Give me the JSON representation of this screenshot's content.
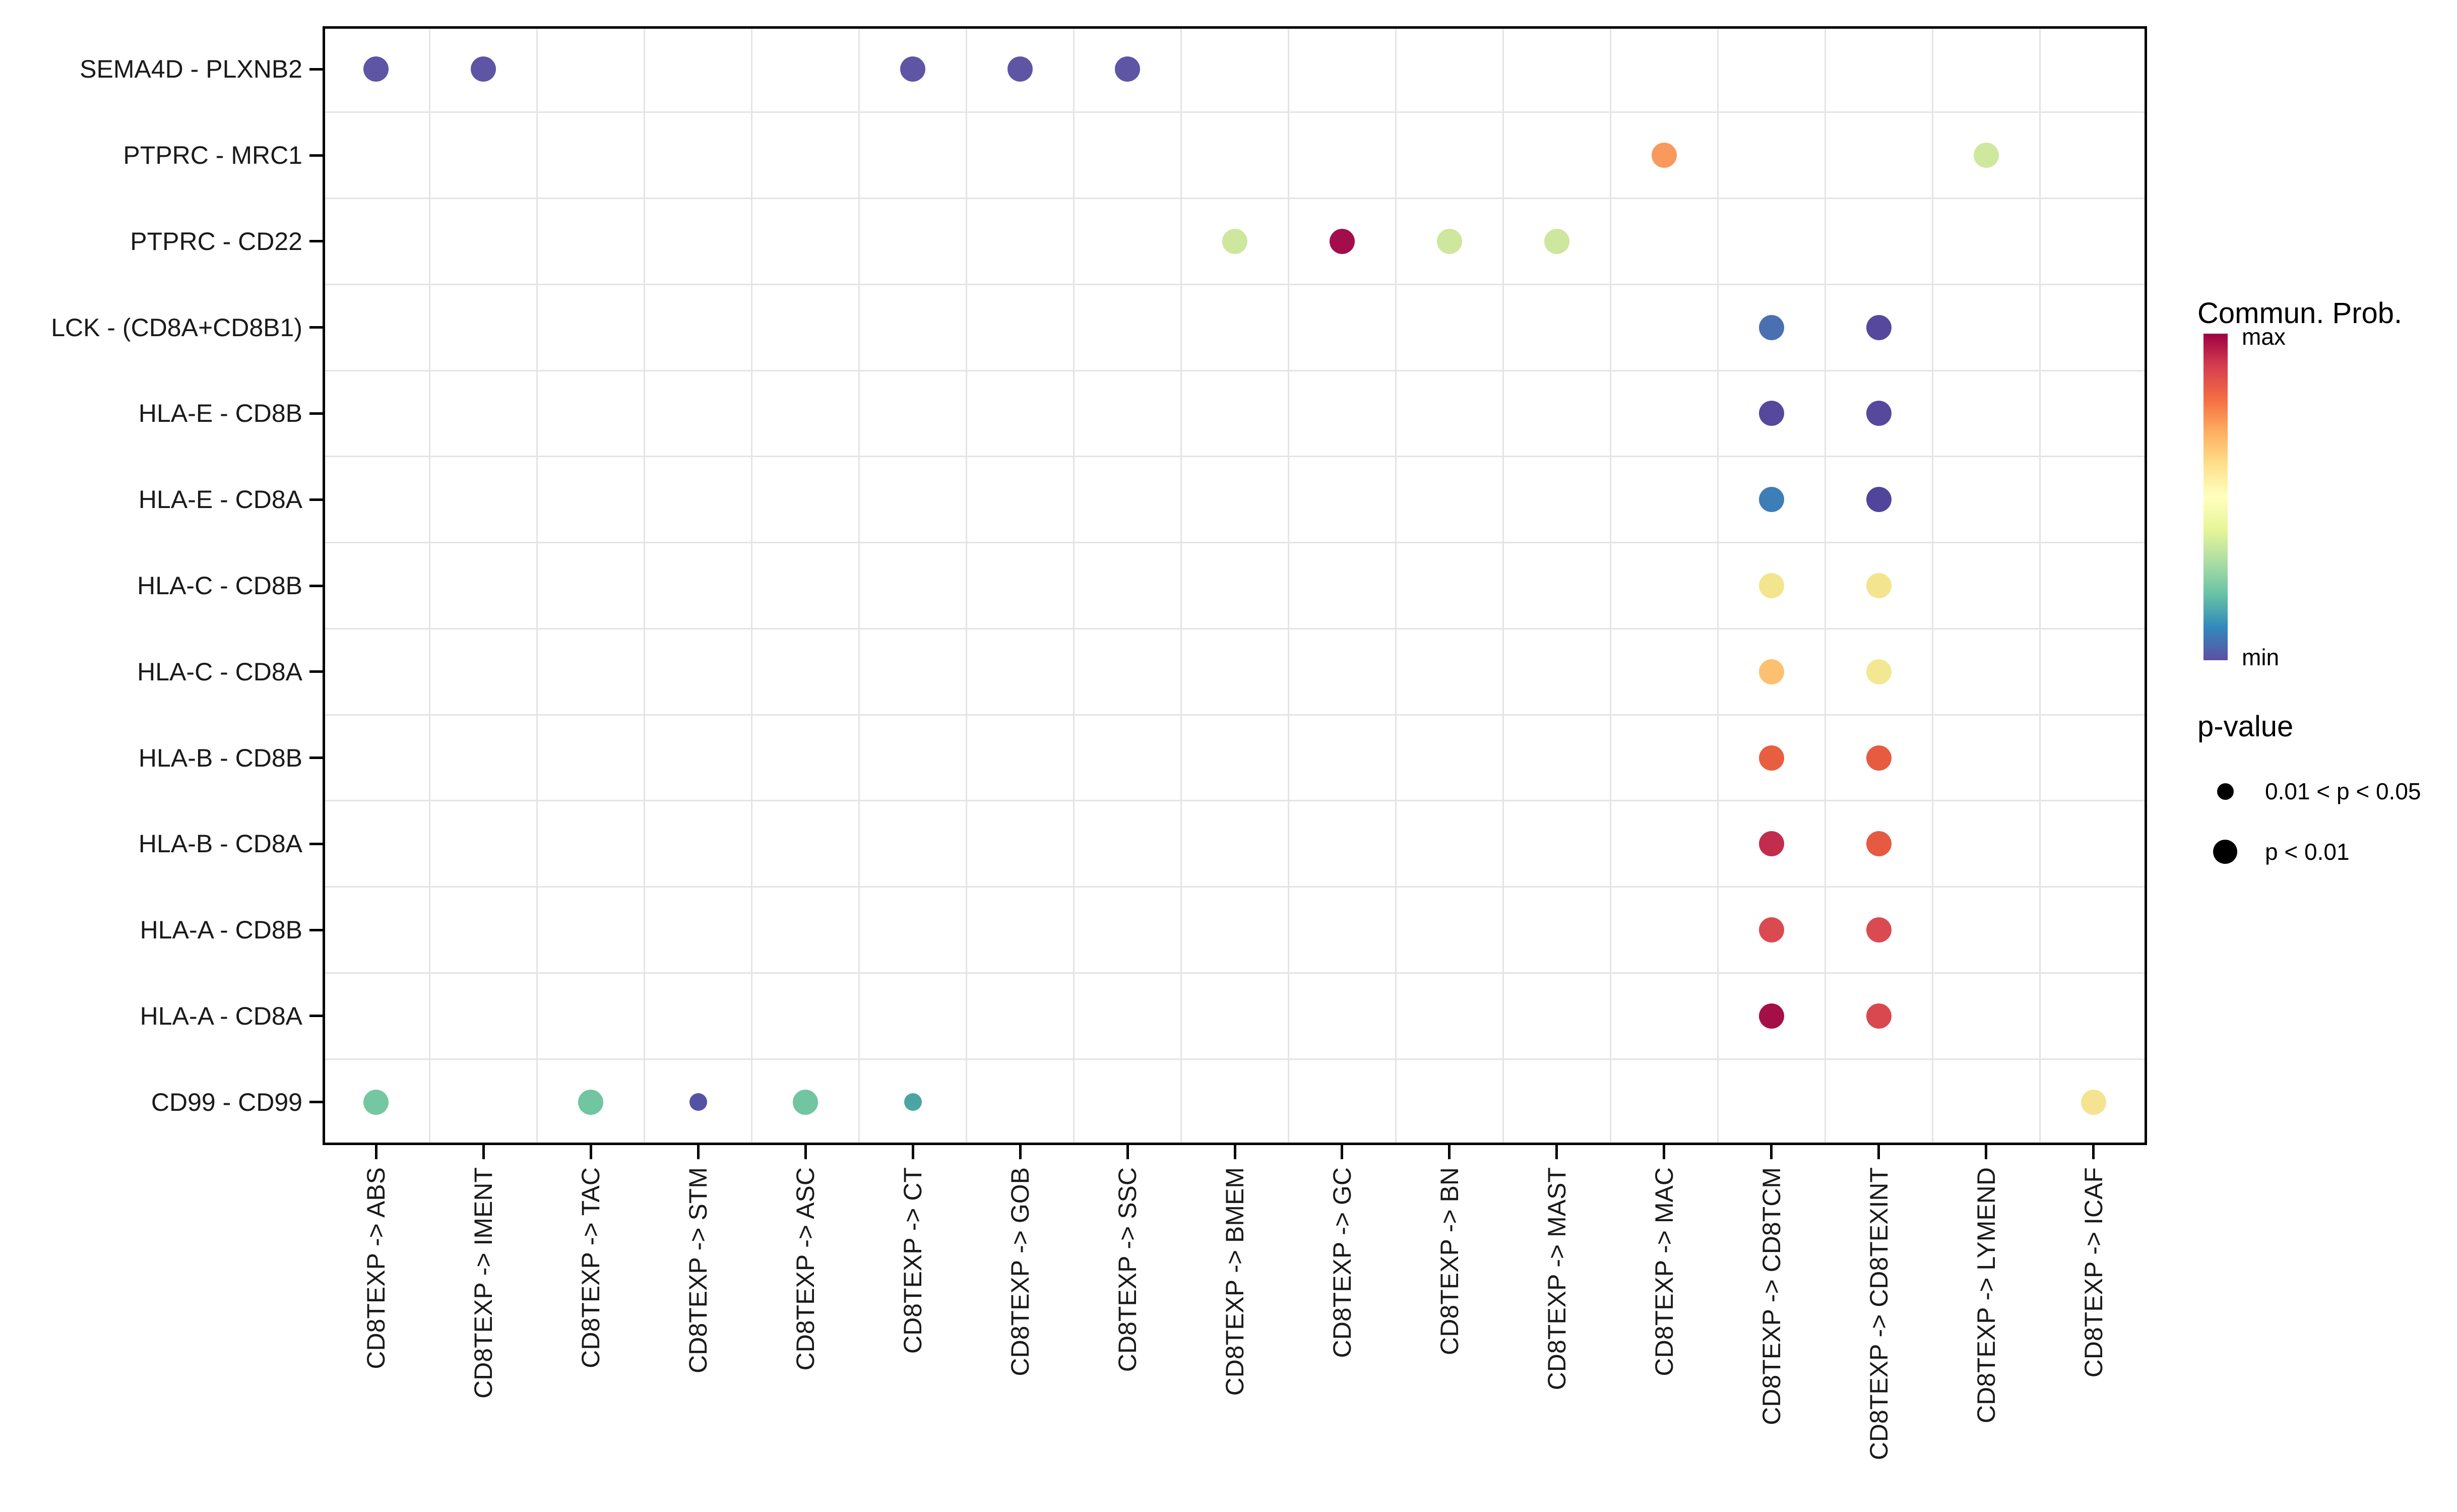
{
  "chart_data": {
    "type": "bubble",
    "title": "",
    "xlabel": "",
    "ylabel": "",
    "grid": true,
    "x_categories": [
      "CD8TEXP -> ABS",
      "CD8TEXP -> IMENT",
      "CD8TEXP -> TAC",
      "CD8TEXP -> STM",
      "CD8TEXP -> ASC",
      "CD8TEXP -> CT",
      "CD8TEXP -> GOB",
      "CD8TEXP -> SSC",
      "CD8TEXP -> BMEM",
      "CD8TEXP -> GC",
      "CD8TEXP -> BN",
      "CD8TEXP -> MAST",
      "CD8TEXP -> MAC",
      "CD8TEXP -> CD8TCM",
      "CD8TEXP -> CD8TEXINT",
      "CD8TEXP -> LYMEND",
      "CD8TEXP -> ICAF"
    ],
    "y_categories": [
      "SEMA4D - PLXNB2",
      "PTPRC - MRC1",
      "PTPRC - CD22",
      "LCK - (CD8A+CD8B1)",
      "HLA-E - CD8B",
      "HLA-E - CD8A",
      "HLA-C - CD8B",
      "HLA-C - CD8A",
      "HLA-B - CD8B",
      "HLA-B - CD8A",
      "HLA-A - CD8B",
      "HLA-A - CD8A",
      "CD99 - CD99"
    ],
    "color_scale": {
      "title": "Commun. Prob.",
      "max_label": "max",
      "min_label": "min",
      "gradient": [
        "#9E0142",
        "#D53E4F",
        "#F46D43",
        "#FDAE61",
        "#FEE08B",
        "#FFFFBF",
        "#E6F598",
        "#ABDDA4",
        "#66C2A5",
        "#3288BD",
        "#5E4FA2"
      ]
    },
    "size_legend": {
      "title": "p-value",
      "items": [
        {
          "label": "0.01 < p < 0.05",
          "size": "small"
        },
        {
          "label": "p < 0.01",
          "size": "large"
        }
      ]
    },
    "points": [
      {
        "x": "CD8TEXP -> ABS",
        "y": "SEMA4D - PLXNB2",
        "color": "#5E55A5",
        "p": "p < 0.01"
      },
      {
        "x": "CD8TEXP -> IMENT",
        "y": "SEMA4D - PLXNB2",
        "color": "#5E55A5",
        "p": "p < 0.01"
      },
      {
        "x": "CD8TEXP -> CT",
        "y": "SEMA4D - PLXNB2",
        "color": "#5E55A5",
        "p": "p < 0.01"
      },
      {
        "x": "CD8TEXP -> GOB",
        "y": "SEMA4D - PLXNB2",
        "color": "#5E55A5",
        "p": "p < 0.01"
      },
      {
        "x": "CD8TEXP -> SSC",
        "y": "SEMA4D - PLXNB2",
        "color": "#5E55A5",
        "p": "p < 0.01"
      },
      {
        "x": "CD8TEXP -> MAC",
        "y": "PTPRC - MRC1",
        "color": "#F9995C",
        "p": "p < 0.01"
      },
      {
        "x": "CD8TEXP -> LYMEND",
        "y": "PTPRC - MRC1",
        "color": "#CEE99D",
        "p": "p < 0.01"
      },
      {
        "x": "CD8TEXP -> BMEM",
        "y": "PTPRC - CD22",
        "color": "#CDE79E",
        "p": "p < 0.01"
      },
      {
        "x": "CD8TEXP -> GC",
        "y": "PTPRC - CD22",
        "color": "#A30D4B",
        "p": "p < 0.01"
      },
      {
        "x": "CD8TEXP -> BN",
        "y": "PTPRC - CD22",
        "color": "#CDE79E",
        "p": "p < 0.01"
      },
      {
        "x": "CD8TEXP -> MAST",
        "y": "PTPRC - CD22",
        "color": "#CDE79E",
        "p": "p < 0.01"
      },
      {
        "x": "CD8TEXP -> CD8TCM",
        "y": "LCK - (CD8A+CD8B1)",
        "color": "#4A70B2",
        "p": "p < 0.01"
      },
      {
        "x": "CD8TEXP -> CD8TEXINT",
        "y": "LCK - (CD8A+CD8B1)",
        "color": "#56489C",
        "p": "p < 0.01"
      },
      {
        "x": "CD8TEXP -> CD8TCM",
        "y": "HLA-E - CD8B",
        "color": "#56489C",
        "p": "p < 0.01"
      },
      {
        "x": "CD8TEXP -> CD8TEXINT",
        "y": "HLA-E - CD8B",
        "color": "#56489C",
        "p": "p < 0.01"
      },
      {
        "x": "CD8TEXP -> CD8TCM",
        "y": "HLA-E - CD8A",
        "color": "#3E7EB8",
        "p": "p < 0.01"
      },
      {
        "x": "CD8TEXP -> CD8TEXINT",
        "y": "HLA-E - CD8A",
        "color": "#50459A",
        "p": "p < 0.01"
      },
      {
        "x": "CD8TEXP -> CD8TCM",
        "y": "HLA-C - CD8B",
        "color": "#F2E58D",
        "p": "p < 0.01"
      },
      {
        "x": "CD8TEXP -> CD8TEXINT",
        "y": "HLA-C - CD8B",
        "color": "#F2E58D",
        "p": "p < 0.01"
      },
      {
        "x": "CD8TEXP -> CD8TCM",
        "y": "HLA-C - CD8A",
        "color": "#FBC171",
        "p": "p < 0.01"
      },
      {
        "x": "CD8TEXP -> CD8TEXINT",
        "y": "HLA-C - CD8A",
        "color": "#F4E792",
        "p": "p < 0.01"
      },
      {
        "x": "CD8TEXP -> CD8TCM",
        "y": "HLA-B - CD8B",
        "color": "#E75F40",
        "p": "p < 0.01"
      },
      {
        "x": "CD8TEXP -> CD8TEXINT",
        "y": "HLA-B - CD8B",
        "color": "#E75B40",
        "p": "p < 0.01"
      },
      {
        "x": "CD8TEXP -> CD8TCM",
        "y": "HLA-B - CD8A",
        "color": "#C22D4D",
        "p": "p < 0.01"
      },
      {
        "x": "CD8TEXP -> CD8TEXINT",
        "y": "HLA-B - CD8A",
        "color": "#E55A41",
        "p": "p < 0.01"
      },
      {
        "x": "CD8TEXP -> CD8TCM",
        "y": "HLA-A - CD8B",
        "color": "#D94B51",
        "p": "p < 0.01"
      },
      {
        "x": "CD8TEXP -> CD8TEXINT",
        "y": "HLA-A - CD8B",
        "color": "#D94B51",
        "p": "p < 0.01"
      },
      {
        "x": "CD8TEXP -> CD8TCM",
        "y": "HLA-A - CD8A",
        "color": "#A50F48",
        "p": "p < 0.01"
      },
      {
        "x": "CD8TEXP -> CD8TEXINT",
        "y": "HLA-A - CD8A",
        "color": "#D8484E",
        "p": "p < 0.01"
      },
      {
        "x": "CD8TEXP -> ABS",
        "y": "CD99 - CD99",
        "color": "#74C7A0",
        "p": "p < 0.01"
      },
      {
        "x": "CD8TEXP -> TAC",
        "y": "CD99 - CD99",
        "color": "#71C5A0",
        "p": "p < 0.01"
      },
      {
        "x": "CD8TEXP -> STM",
        "y": "CD99 - CD99",
        "color": "#5452A3",
        "p": "0.01 < p < 0.05"
      },
      {
        "x": "CD8TEXP -> ASC",
        "y": "CD99 - CD99",
        "color": "#71C5A0",
        "p": "p < 0.01"
      },
      {
        "x": "CD8TEXP -> CT",
        "y": "CD99 - CD99",
        "color": "#4CA5A5",
        "p": "0.01 < p < 0.05"
      },
      {
        "x": "CD8TEXP -> ICAF",
        "y": "CD99 - CD99",
        "color": "#F5E392",
        "p": "p < 0.01"
      }
    ]
  }
}
